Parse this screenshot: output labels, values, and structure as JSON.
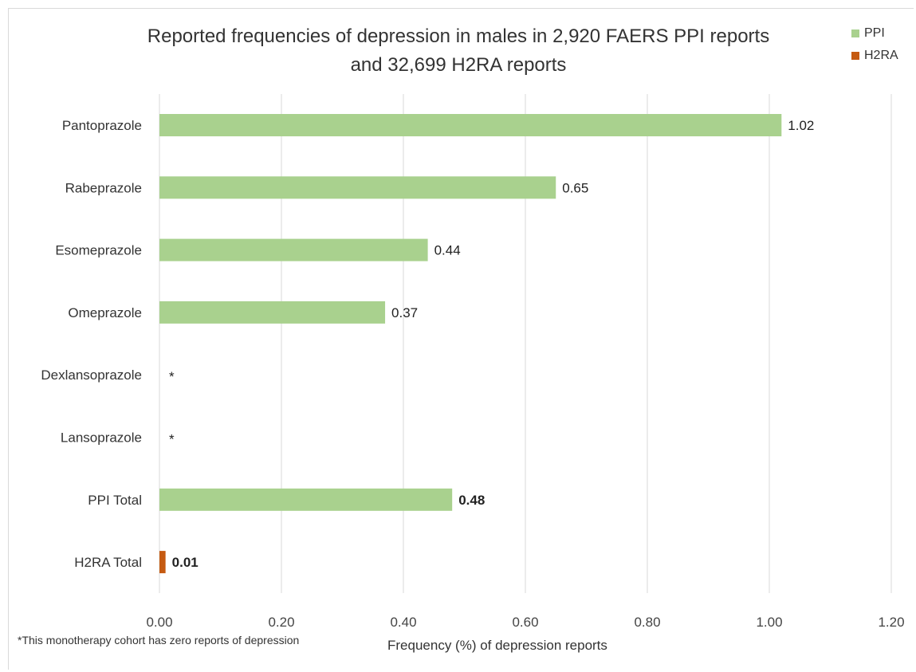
{
  "chart_data": {
    "type": "bar",
    "orientation": "horizontal",
    "title": [
      "Reported frequencies of depression in males in 2,920 FAERS PPI reports",
      "and 32,699 H2RA reports"
    ],
    "xlabel": "Frequency (%) of depression reports",
    "ylabel": "",
    "xlim": [
      0,
      1.2
    ],
    "xticks": [
      "0.00",
      "0.20",
      "0.40",
      "0.60",
      "0.80",
      "1.00",
      "1.20"
    ],
    "grid": "vertical",
    "legend_position": "top-right",
    "categories": [
      "Pantoprazole",
      "Rabeprazole",
      "Esomeprazole",
      "Omeprazole",
      "Dexlansoprazole",
      "Lansoprazole",
      "PPI Total",
      "H2RA Total"
    ],
    "bars": [
      {
        "category": "Pantoprazole",
        "value": 1.02,
        "label": "1.02",
        "series": "PPI",
        "bold": false
      },
      {
        "category": "Rabeprazole",
        "value": 0.65,
        "label": "0.65",
        "series": "PPI",
        "bold": false
      },
      {
        "category": "Esomeprazole",
        "value": 0.44,
        "label": "0.44",
        "series": "PPI",
        "bold": false
      },
      {
        "category": "Omeprazole",
        "value": 0.37,
        "label": "0.37",
        "series": "PPI",
        "bold": false
      },
      {
        "category": "Dexlansoprazole",
        "value": 0,
        "label": "*",
        "series": "PPI",
        "bold": false
      },
      {
        "category": "Lansoprazole",
        "value": 0,
        "label": "*",
        "series": "PPI",
        "bold": false
      },
      {
        "category": "PPI Total",
        "value": 0.48,
        "label": "0.48",
        "series": "PPI",
        "bold": true
      },
      {
        "category": "H2RA Total",
        "value": 0.01,
        "label": "0.01",
        "series": "H2RA",
        "bold": true
      }
    ],
    "series": [
      {
        "name": "PPI",
        "color": "#a9d18e"
      },
      {
        "name": "H2RA",
        "color": "#c55a11"
      }
    ],
    "footnote": "*This monotherapy cohort has zero reports of depression"
  }
}
